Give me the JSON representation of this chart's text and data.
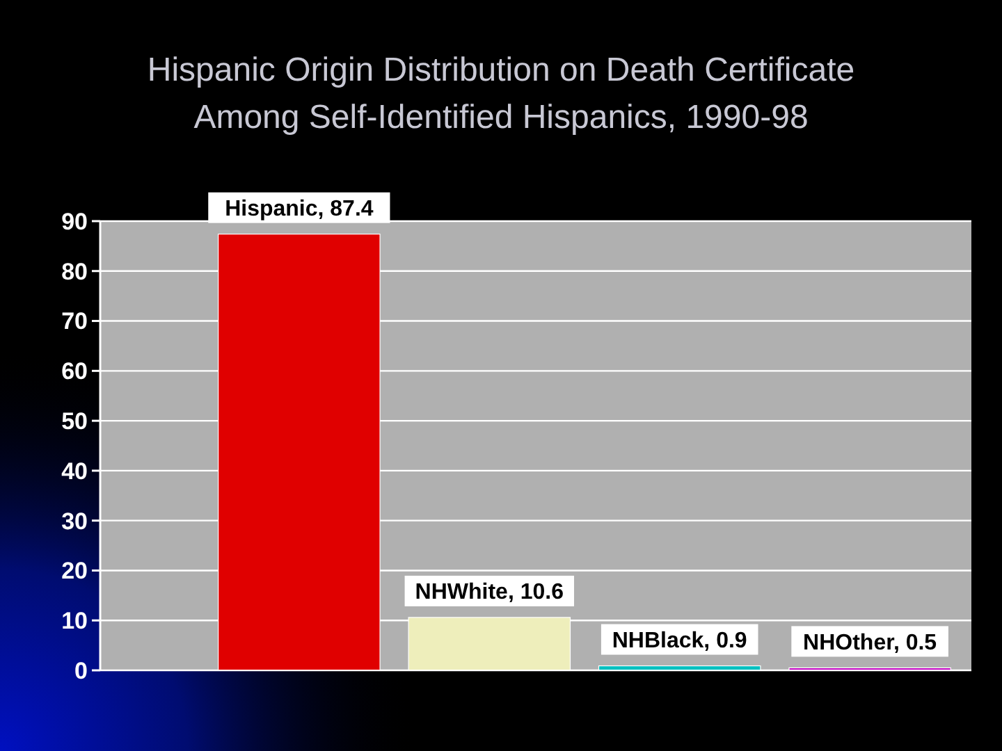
{
  "chart_data": {
    "type": "bar",
    "title": "Hispanic Origin Distribution on Death Certificate\nAmong Self-Identified Hispanics, 1990-98",
    "categories": [
      null,
      null,
      null,
      null
    ],
    "values": [
      87.4,
      10.6,
      0.9,
      0.5
    ],
    "value_labels": [
      "Hispanic, 87.4",
      "NHWhite, 10.6",
      "NHBlack, 0.9",
      "NHOther, 0.5"
    ],
    "colors": [
      "#e00000",
      "#eeeebb",
      "#00c0c0",
      "#c000c0"
    ],
    "ylim": [
      0,
      90
    ],
    "yticks": [
      0,
      10,
      20,
      30,
      40,
      50,
      60,
      70,
      80,
      90
    ],
    "grid": "y",
    "tick_labels": "y"
  }
}
